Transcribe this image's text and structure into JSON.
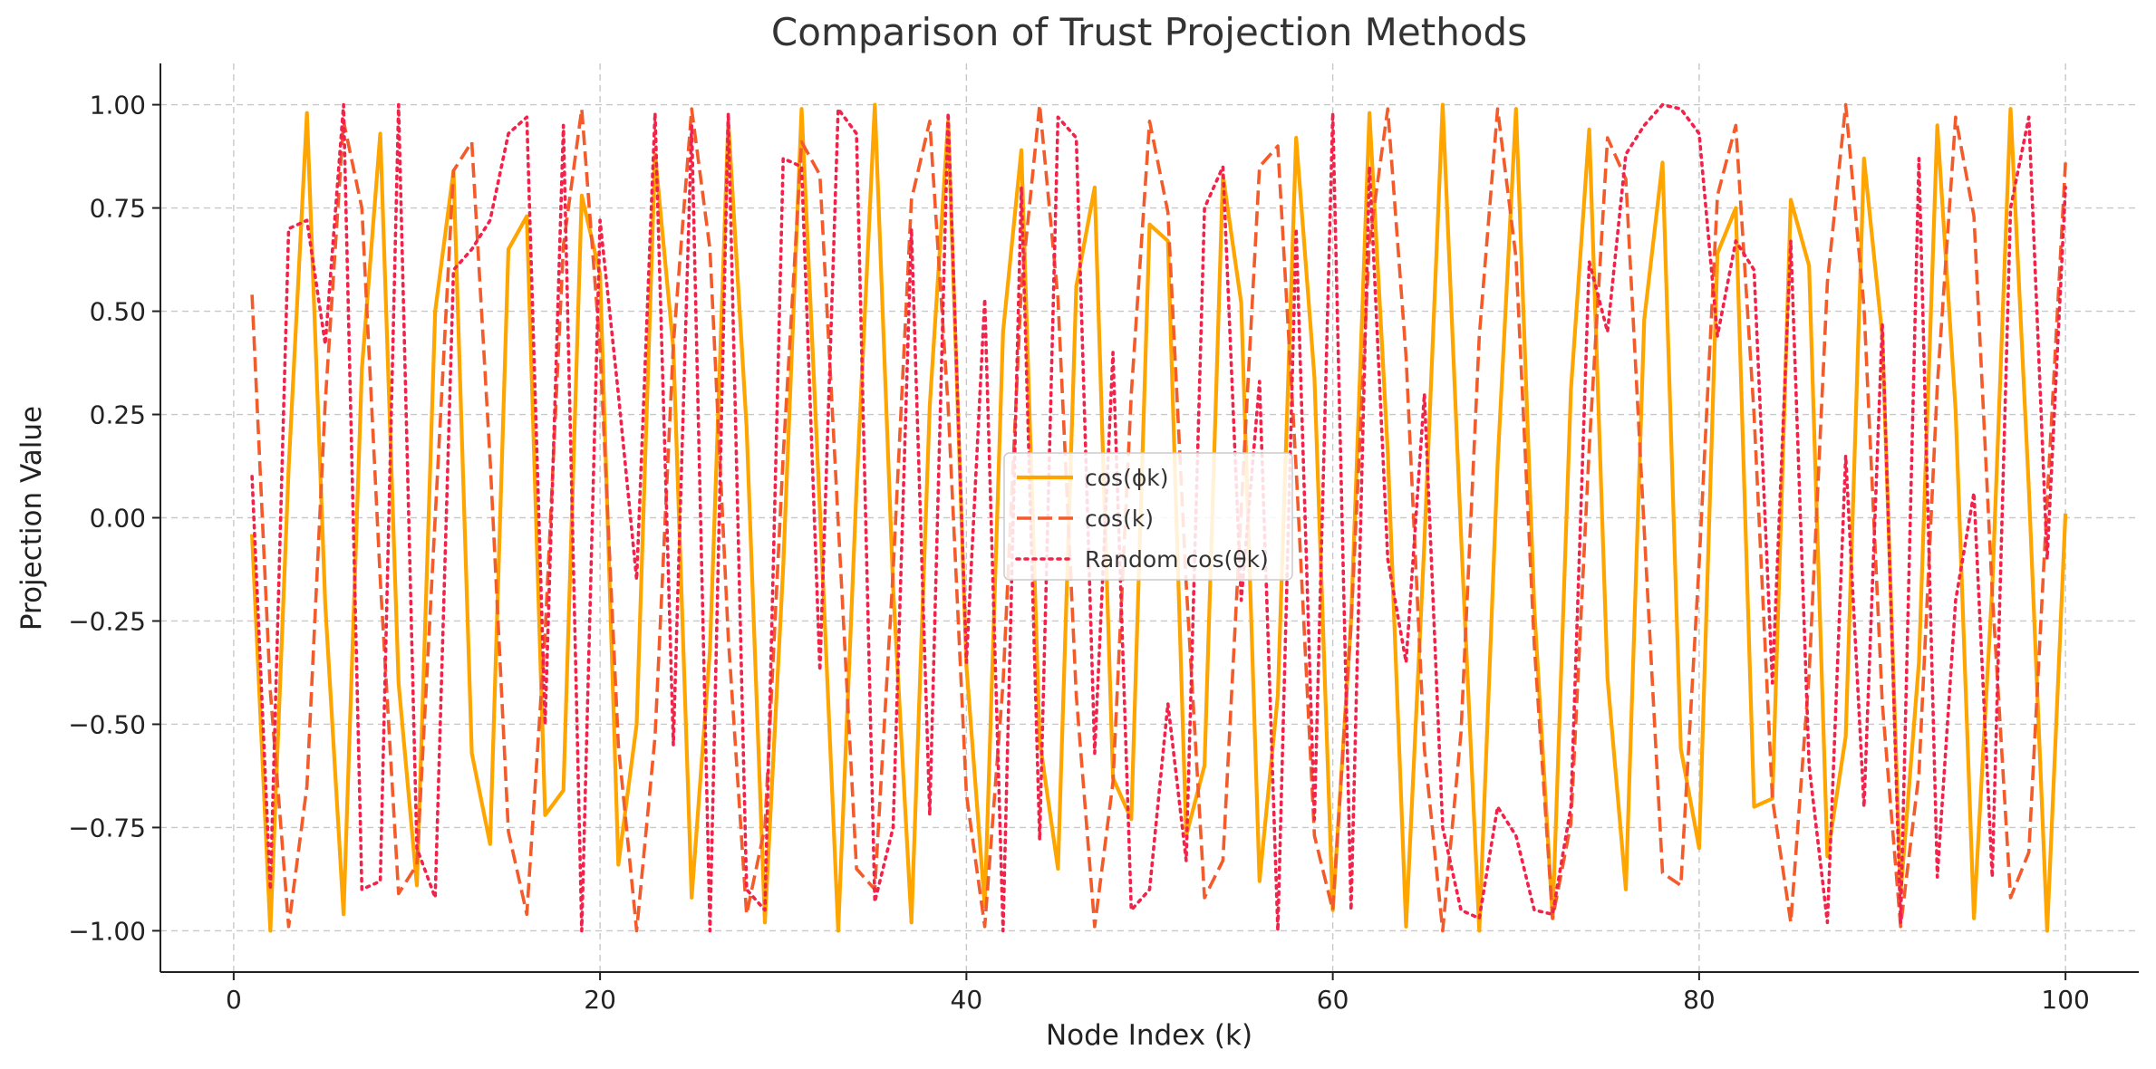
{
  "chart_data": {
    "type": "line",
    "title": "Comparison of Trust Projection Methods",
    "xlabel": "Node Index (k)",
    "ylabel": "Projection Value",
    "xlim": [
      -4,
      104
    ],
    "ylim": [
      -1.1,
      1.1
    ],
    "x_ticks": [
      0,
      20,
      40,
      60,
      80,
      100
    ],
    "x_tick_labels": [
      "0",
      "20",
      "40",
      "60",
      "80",
      "100"
    ],
    "y_ticks": [
      1.0,
      0.75,
      0.5,
      0.25,
      0.0,
      -0.25,
      -0.5,
      -0.75,
      -1.0
    ],
    "y_tick_labels": [
      "1.00",
      "0.75",
      "0.50",
      "0.25",
      "0.00",
      "−0.25",
      "−0.50",
      "−0.75",
      "−1.00"
    ],
    "grid": true,
    "legend_position": "center",
    "x": [
      1,
      2,
      3,
      4,
      5,
      6,
      7,
      8,
      9,
      10,
      11,
      12,
      13,
      14,
      15,
      16,
      17,
      18,
      19,
      20,
      21,
      22,
      23,
      24,
      25,
      26,
      27,
      28,
      29,
      30,
      31,
      32,
      33,
      34,
      35,
      36,
      37,
      38,
      39,
      40,
      41,
      42,
      43,
      44,
      45,
      46,
      47,
      48,
      49,
      50,
      51,
      52,
      53,
      54,
      55,
      56,
      57,
      58,
      59,
      60,
      61,
      62,
      63,
      64,
      65,
      66,
      67,
      68,
      69,
      70,
      71,
      72,
      73,
      74,
      75,
      76,
      77,
      78,
      79,
      80,
      81,
      82,
      83,
      84,
      85,
      86,
      87,
      88,
      89,
      90,
      91,
      92,
      93,
      94,
      95,
      96,
      97,
      98,
      99,
      100
    ],
    "series": [
      {
        "name": "cos(φk)",
        "legend_label": "cos(ϕk)",
        "color": "#FFA500",
        "style": "solid",
        "values": [
          -0.04,
          -1.0,
          0.12,
          0.98,
          -0.21,
          -0.96,
          0.36,
          0.93,
          -0.4,
          -0.89,
          0.5,
          0.84,
          -0.57,
          -0.79,
          0.65,
          0.73,
          -0.72,
          -0.66,
          0.78,
          0.59,
          -0.84,
          -0.5,
          0.88,
          0.41,
          -0.92,
          -0.32,
          0.96,
          0.22,
          -0.98,
          -0.12,
          0.99,
          0.02,
          -1.0,
          0.07,
          1.0,
          -0.17,
          -0.98,
          0.27,
          0.96,
          -0.36,
          -0.94,
          0.45,
          0.89,
          -0.54,
          -0.85,
          0.56,
          0.8,
          -0.63,
          -0.73,
          0.71,
          0.67,
          -0.77,
          -0.6,
          0.83,
          0.52,
          -0.88,
          -0.43,
          0.92,
          0.34,
          -0.95,
          -0.25,
          0.98,
          0.16,
          -0.99,
          -0.06,
          1.0,
          -0.04,
          -1.0,
          0.13,
          0.99,
          -0.22,
          -0.97,
          0.31,
          0.94,
          -0.39,
          -0.9,
          0.48,
          0.86,
          -0.56,
          -0.8,
          0.64,
          0.75,
          -0.7,
          -0.68,
          0.77,
          0.61,
          -0.82,
          -0.53,
          0.87,
          0.44,
          -0.91,
          -0.35,
          0.95,
          0.26,
          -0.97,
          -0.17,
          0.99,
          0.07,
          -1.0,
          0.01
        ]
      },
      {
        "name": "cos(k)",
        "legend_label": "cos(k)",
        "color": "#F35B2A",
        "style": "dashed",
        "values": [
          0.54,
          -0.42,
          -0.99,
          -0.65,
          0.28,
          0.96,
          0.75,
          -0.15,
          -0.91,
          -0.84,
          0.0,
          0.84,
          0.91,
          0.14,
          -0.76,
          -0.96,
          -0.28,
          0.66,
          0.99,
          0.41,
          -0.55,
          -1.0,
          -0.53,
          0.42,
          0.99,
          0.65,
          -0.29,
          -0.96,
          -0.75,
          0.15,
          0.91,
          0.83,
          -0.01,
          -0.85,
          -0.9,
          -0.13,
          0.77,
          0.96,
          0.27,
          -0.67,
          -0.99,
          -0.4,
          0.56,
          1.0,
          0.53,
          -0.43,
          -0.99,
          -0.64,
          0.3,
          0.96,
          0.74,
          -0.16,
          -0.92,
          -0.83,
          0.02,
          0.85,
          0.9,
          0.12,
          -0.77,
          -0.95,
          -0.26,
          0.67,
          0.99,
          0.39,
          -0.56,
          -1.0,
          -0.52,
          0.44,
          0.99,
          0.63,
          -0.31,
          -0.97,
          -0.74,
          0.17,
          0.92,
          0.82,
          -0.03,
          -0.86,
          -0.89,
          -0.11,
          0.78,
          0.95,
          0.25,
          -0.68,
          -0.98,
          -0.38,
          0.57,
          1.0,
          0.51,
          -0.45,
          -0.99,
          -0.62,
          0.32,
          0.97,
          0.73,
          -0.18,
          -0.92,
          -0.81,
          0.04,
          0.86
        ]
      },
      {
        "name": "Random cos(θk)",
        "legend_label": "Random cos(θk)",
        "color": "#F2234A",
        "style": "dotted",
        "values": [
          0.1,
          -0.9,
          0.7,
          0.72,
          0.42,
          1.0,
          -0.9,
          -0.88,
          1.0,
          -0.8,
          -0.92,
          0.6,
          0.65,
          0.72,
          0.93,
          0.97,
          -0.5,
          0.95,
          -1.0,
          0.72,
          0.3,
          -0.15,
          0.98,
          -0.55,
          0.95,
          -1.0,
          0.98,
          -0.9,
          -0.95,
          0.87,
          0.85,
          -0.37,
          0.99,
          0.93,
          -0.93,
          -0.75,
          0.7,
          -0.72,
          0.98,
          -0.35,
          0.53,
          -1.0,
          0.8,
          -0.78,
          0.97,
          0.92,
          -0.57,
          0.4,
          -0.95,
          -0.9,
          -0.45,
          -0.83,
          0.75,
          0.85,
          -0.2,
          0.33,
          -1.0,
          0.7,
          -0.73,
          0.98,
          -0.95,
          0.85,
          -0.1,
          -0.35,
          0.3,
          -0.75,
          -0.95,
          -0.97,
          -0.7,
          -0.77,
          -0.95,
          -0.96,
          -0.7,
          0.62,
          0.45,
          0.88,
          0.95,
          1.0,
          0.99,
          0.93,
          0.44,
          0.67,
          0.6,
          -0.4,
          0.67,
          -0.6,
          -0.98,
          0.15,
          -0.7,
          0.47,
          -0.98,
          0.87,
          -0.87,
          -0.2,
          0.06,
          -0.87,
          0.75,
          0.97,
          -0.1,
          0.8
        ]
      }
    ]
  }
}
